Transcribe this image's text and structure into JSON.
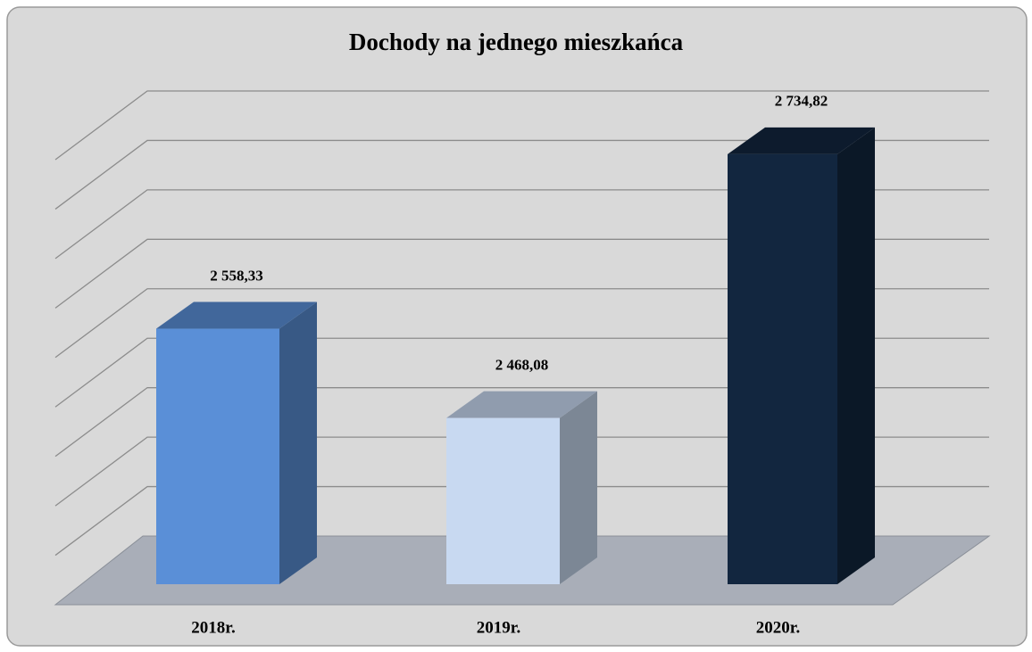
{
  "chart_data": {
    "type": "bar3d",
    "title": "Dochody na jednego mieszkańca",
    "categories": [
      "2018r.",
      "2019r.",
      "2020r."
    ],
    "values": [
      2558.33,
      2468.08,
      2734.82
    ],
    "value_labels": [
      "2 558,33",
      "2 468,08",
      "2 734,82"
    ],
    "colors": [
      "#5a8fd7",
      "#c8d9f1",
      "#12263f"
    ],
    "ylim": [
      2300,
      2750
    ],
    "yticks": [
      2300,
      2350,
      2400,
      2450,
      2500,
      2550,
      2600,
      2650,
      2700,
      2750
    ],
    "grid": true
  }
}
